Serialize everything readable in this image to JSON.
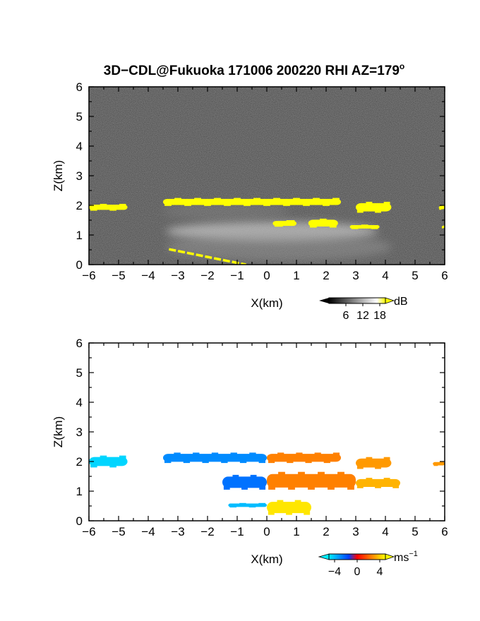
{
  "title": "3D−CDL@Fukuoka 171006 200220 RHI AZ=179",
  "title_degree": "o",
  "chart_data": [
    {
      "type": "heatmap",
      "panel": "top",
      "quantity": "backscatter",
      "xlabel": "X(km)",
      "ylabel": "Z(km)",
      "xlim": [
        -6,
        6
      ],
      "ylim": [
        0,
        6
      ],
      "xticks": [
        "−6",
        "−5",
        "−4",
        "−3",
        "−2",
        "−1",
        "0",
        "1",
        "2",
        "3",
        "4",
        "5",
        "6"
      ],
      "yticks": [
        "0",
        "1",
        "2",
        "3",
        "4",
        "5",
        "6"
      ],
      "background": "#3a3a3a",
      "colorbar": {
        "unit": "dB",
        "ticks": [
          "6",
          "12",
          "18"
        ],
        "range": [
          0,
          20
        ],
        "colors": [
          "#000000",
          "#ffffff",
          "#ffff00"
        ]
      },
      "features": [
        {
          "name": "cloud layer",
          "x": [
            -6,
            -4.7
          ],
          "z": [
            1.82,
            2.05
          ],
          "color": "#ffff00"
        },
        {
          "name": "cloud layer",
          "x": [
            -3.5,
            2.5
          ],
          "z": [
            1.98,
            2.25
          ],
          "color": "#ffff00"
        },
        {
          "name": "cloud patch",
          "x": [
            3.0,
            4.2
          ],
          "z": [
            1.75,
            2.12
          ],
          "color": "#ffff00"
        },
        {
          "name": "cloud patch",
          "x": [
            0.2,
            1.0
          ],
          "z": [
            1.28,
            1.5
          ],
          "color": "#ffff00"
        },
        {
          "name": "cloud patch",
          "x": [
            1.4,
            2.4
          ],
          "z": [
            1.25,
            1.55
          ],
          "color": "#ffff00"
        },
        {
          "name": "cloud patch",
          "x": [
            2.8,
            3.8
          ],
          "z": [
            1.2,
            1.35
          ],
          "color": "#ffff00"
        },
        {
          "name": "cloud edge",
          "x": [
            5.8,
            6
          ],
          "z": [
            1.85,
            2.0
          ],
          "color": "#ffff00"
        },
        {
          "name": "cloud edge",
          "x": [
            5.9,
            6
          ],
          "z": [
            1.22,
            1.32
          ],
          "color": "#ffff00"
        },
        {
          "name": "surface echo",
          "x": [
            -3.3,
            -0.7
          ],
          "z": [
            0.0,
            0.52
          ],
          "color": "#ffff00"
        }
      ]
    },
    {
      "type": "heatmap",
      "panel": "bottom",
      "quantity": "Doppler velocity",
      "xlabel": "X(km)",
      "ylabel": "Z(km)",
      "xlim": [
        -6,
        6
      ],
      "ylim": [
        0,
        6
      ],
      "xticks": [
        "−6",
        "−5",
        "−4",
        "−3",
        "−2",
        "−1",
        "0",
        "1",
        "2",
        "3",
        "4",
        "5",
        "6"
      ],
      "yticks": [
        "0",
        "1",
        "2",
        "3",
        "4",
        "5",
        "6"
      ],
      "background": "#ffffff",
      "colorbar": {
        "unit": "ms",
        "unit_exponent": "−1",
        "ticks": [
          "−4",
          "0",
          "4"
        ],
        "range": [
          -5,
          5
        ],
        "colors": [
          "#00eeff",
          "#0040ff",
          "#ff0000",
          "#ff8000",
          "#ffff00"
        ]
      },
      "features": [
        {
          "x": [
            -6,
            -4.7
          ],
          "z": [
            1.8,
            2.2
          ],
          "velocity": -4.5
        },
        {
          "x": [
            -3.5,
            0.0
          ],
          "z": [
            1.95,
            2.3
          ],
          "velocity": -3.0
        },
        {
          "x": [
            0.0,
            2.5
          ],
          "z": [
            1.95,
            2.3
          ],
          "velocity": 2.5
        },
        {
          "x": [
            3.0,
            4.2
          ],
          "z": [
            1.75,
            2.15
          ],
          "velocity": 3.0
        },
        {
          "x": [
            -1.5,
            0.0
          ],
          "z": [
            1.05,
            1.55
          ],
          "velocity": -2.5
        },
        {
          "x": [
            0.0,
            3.0
          ],
          "z": [
            1.05,
            1.65
          ],
          "velocity": 2.5
        },
        {
          "x": [
            3.0,
            4.5
          ],
          "z": [
            1.1,
            1.45
          ],
          "velocity": 3.5
        },
        {
          "x": [
            -1.3,
            0.0
          ],
          "z": [
            0.45,
            0.6
          ],
          "velocity": -4.0
        },
        {
          "x": [
            0.0,
            1.5
          ],
          "z": [
            0.2,
            0.7
          ],
          "velocity": 4.5
        },
        {
          "x": [
            5.6,
            6
          ],
          "z": [
            1.85,
            2.0
          ],
          "velocity": 3.0
        }
      ]
    }
  ]
}
